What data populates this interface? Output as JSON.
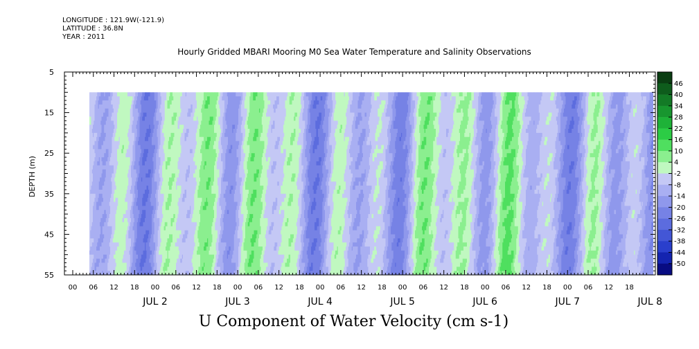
{
  "header": {
    "longitude": "LONGITUDE : 121.9W(-121.9)",
    "latitude": "LATITUDE : 36.8N",
    "year": "YEAR : 2011"
  },
  "chart_data": {
    "type": "heatmap",
    "title": "Hourly Gridded MBARI Mooring M0 Sea Water Temperature and Salinity Observations",
    "xlabel": "U Component of Water Velocity (cm s-1)",
    "ylabel": "DEPTH (m)",
    "ylim": [
      55,
      5
    ],
    "yticks": [
      5,
      15,
      25,
      35,
      45,
      55
    ],
    "hour_ticks": [
      "00",
      "06",
      "12",
      "18",
      "00",
      "06",
      "12",
      "18",
      "00",
      "06",
      "12",
      "18",
      "00",
      "06",
      "12",
      "18",
      "00",
      "06",
      "12",
      "18",
      "00",
      "06",
      "12",
      "18",
      "00",
      "06",
      "12",
      "18"
    ],
    "day_labels": [
      "JUL 2",
      "JUL 3",
      "JUL 4",
      "JUL 5",
      "JUL 6",
      "JUL 7",
      "JUL 8"
    ],
    "data_depth_range": [
      10,
      55
    ],
    "colorbar": {
      "levels": [
        48,
        46,
        40,
        34,
        28,
        22,
        16,
        10,
        4,
        -2,
        -8,
        -14,
        -20,
        -26,
        -32,
        -38,
        -44,
        -50
      ],
      "labels": [
        "46",
        "40",
        "34",
        "28",
        "22",
        "16",
        "10",
        "4",
        "-2",
        "-8",
        "-14",
        "-20",
        "-26",
        "-32",
        "-38",
        "-44",
        "-50"
      ],
      "colors": [
        "#0a3d12",
        "#0e5c1c",
        "#137a26",
        "#18962f",
        "#1eb238",
        "#2ccc45",
        "#4fdf5f",
        "#8bef8f",
        "#c0f8c0",
        "#c4c8f5",
        "#a9aff2",
        "#8f98ec",
        "#7682e5",
        "#5c6cde",
        "#4356d6",
        "#2a3fcc",
        "#1424b0",
        "#080c82"
      ]
    }
  }
}
